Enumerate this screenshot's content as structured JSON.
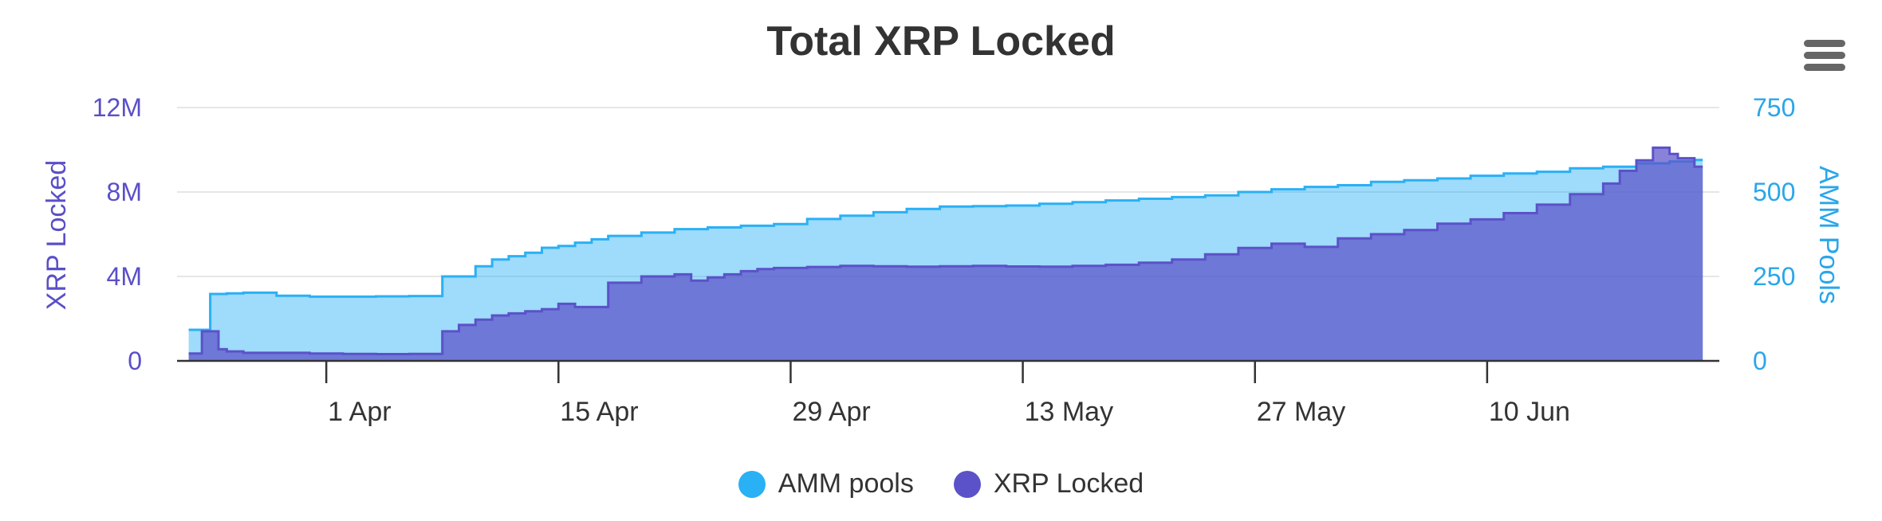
{
  "chart_data": {
    "type": "area",
    "title": "Total XRP Locked",
    "x_ticks": [
      "1 Apr",
      "15 Apr",
      "29 Apr",
      "13 May",
      "27 May",
      "10 Jun"
    ],
    "x_tick_days": [
      7,
      21,
      35,
      49,
      63,
      77
    ],
    "xlim": [
      -2,
      91
    ],
    "left_axis": {
      "label": "XRP Locked",
      "min": 0,
      "max": 12000000,
      "ticks": [
        0,
        4000000,
        8000000,
        12000000
      ],
      "tick_labels": [
        "0",
        "4M",
        "8M",
        "12M"
      ]
    },
    "right_axis": {
      "label": "AMM Pools",
      "min": 0,
      "max": 750,
      "ticks": [
        0,
        250,
        500,
        750
      ],
      "tick_labels": [
        "0",
        "250",
        "500",
        "750"
      ]
    },
    "series": [
      {
        "name": "AMM pools",
        "axis": "right",
        "color": "#2ab0f5",
        "x": [
          -1.3,
          -0.5,
          0,
          1,
          2,
          4,
          6,
          8,
          10,
          12,
          14,
          16,
          17,
          18,
          19,
          20,
          21,
          22,
          23,
          24,
          26,
          28,
          30,
          32,
          34,
          36,
          38,
          40,
          42,
          44,
          46,
          48,
          50,
          52,
          54,
          56,
          58,
          60,
          62,
          64,
          66,
          68,
          70,
          72,
          74,
          76,
          78,
          80,
          82,
          84,
          86,
          88,
          89.5
        ],
        "values": [
          92,
          92,
          198,
          200,
          202,
          193,
          190,
          190,
          191,
          192,
          250,
          280,
          300,
          310,
          320,
          335,
          340,
          350,
          360,
          370,
          380,
          390,
          395,
          400,
          405,
          420,
          430,
          440,
          450,
          457,
          458,
          460,
          465,
          470,
          475,
          480,
          485,
          490,
          500,
          508,
          515,
          520,
          530,
          535,
          540,
          548,
          555,
          560,
          570,
          575,
          585,
          590,
          595
        ]
      },
      {
        "name": "XRP Locked",
        "axis": "left",
        "color": "#5b52c9",
        "x": [
          -1.3,
          -0.7,
          -0.5,
          0.5,
          1,
          2,
          4,
          6,
          8,
          10,
          12,
          14,
          15,
          16,
          17,
          18,
          19,
          20,
          21,
          22,
          24,
          26,
          28,
          29,
          30,
          31,
          32,
          33,
          34,
          36,
          38,
          40,
          42,
          44,
          46,
          48,
          50,
          52,
          54,
          56,
          58,
          60,
          62,
          64,
          66,
          68,
          70,
          72,
          74,
          76,
          78,
          80,
          82,
          84,
          85,
          86,
          87,
          88,
          88.5,
          89.5
        ],
        "values": [
          350000,
          350000,
          1400000,
          550000,
          450000,
          380000,
          380000,
          350000,
          330000,
          320000,
          330000,
          1400000,
          1700000,
          1950000,
          2150000,
          2250000,
          2350000,
          2450000,
          2700000,
          2550000,
          3700000,
          4000000,
          4100000,
          3800000,
          3950000,
          4100000,
          4250000,
          4350000,
          4400000,
          4450000,
          4500000,
          4480000,
          4460000,
          4480000,
          4500000,
          4470000,
          4460000,
          4500000,
          4550000,
          4650000,
          4800000,
          5050000,
          5350000,
          5550000,
          5400000,
          5800000,
          6000000,
          6200000,
          6500000,
          6700000,
          7000000,
          7400000,
          7900000,
          8400000,
          9000000,
          9500000,
          10100000,
          9800000,
          9600000,
          9200000
        ]
      }
    ],
    "legend": [
      "AMM pools",
      "XRP Locked"
    ],
    "legend_position": "bottom-center"
  },
  "menu": {
    "icon": "hamburger-menu-icon"
  }
}
